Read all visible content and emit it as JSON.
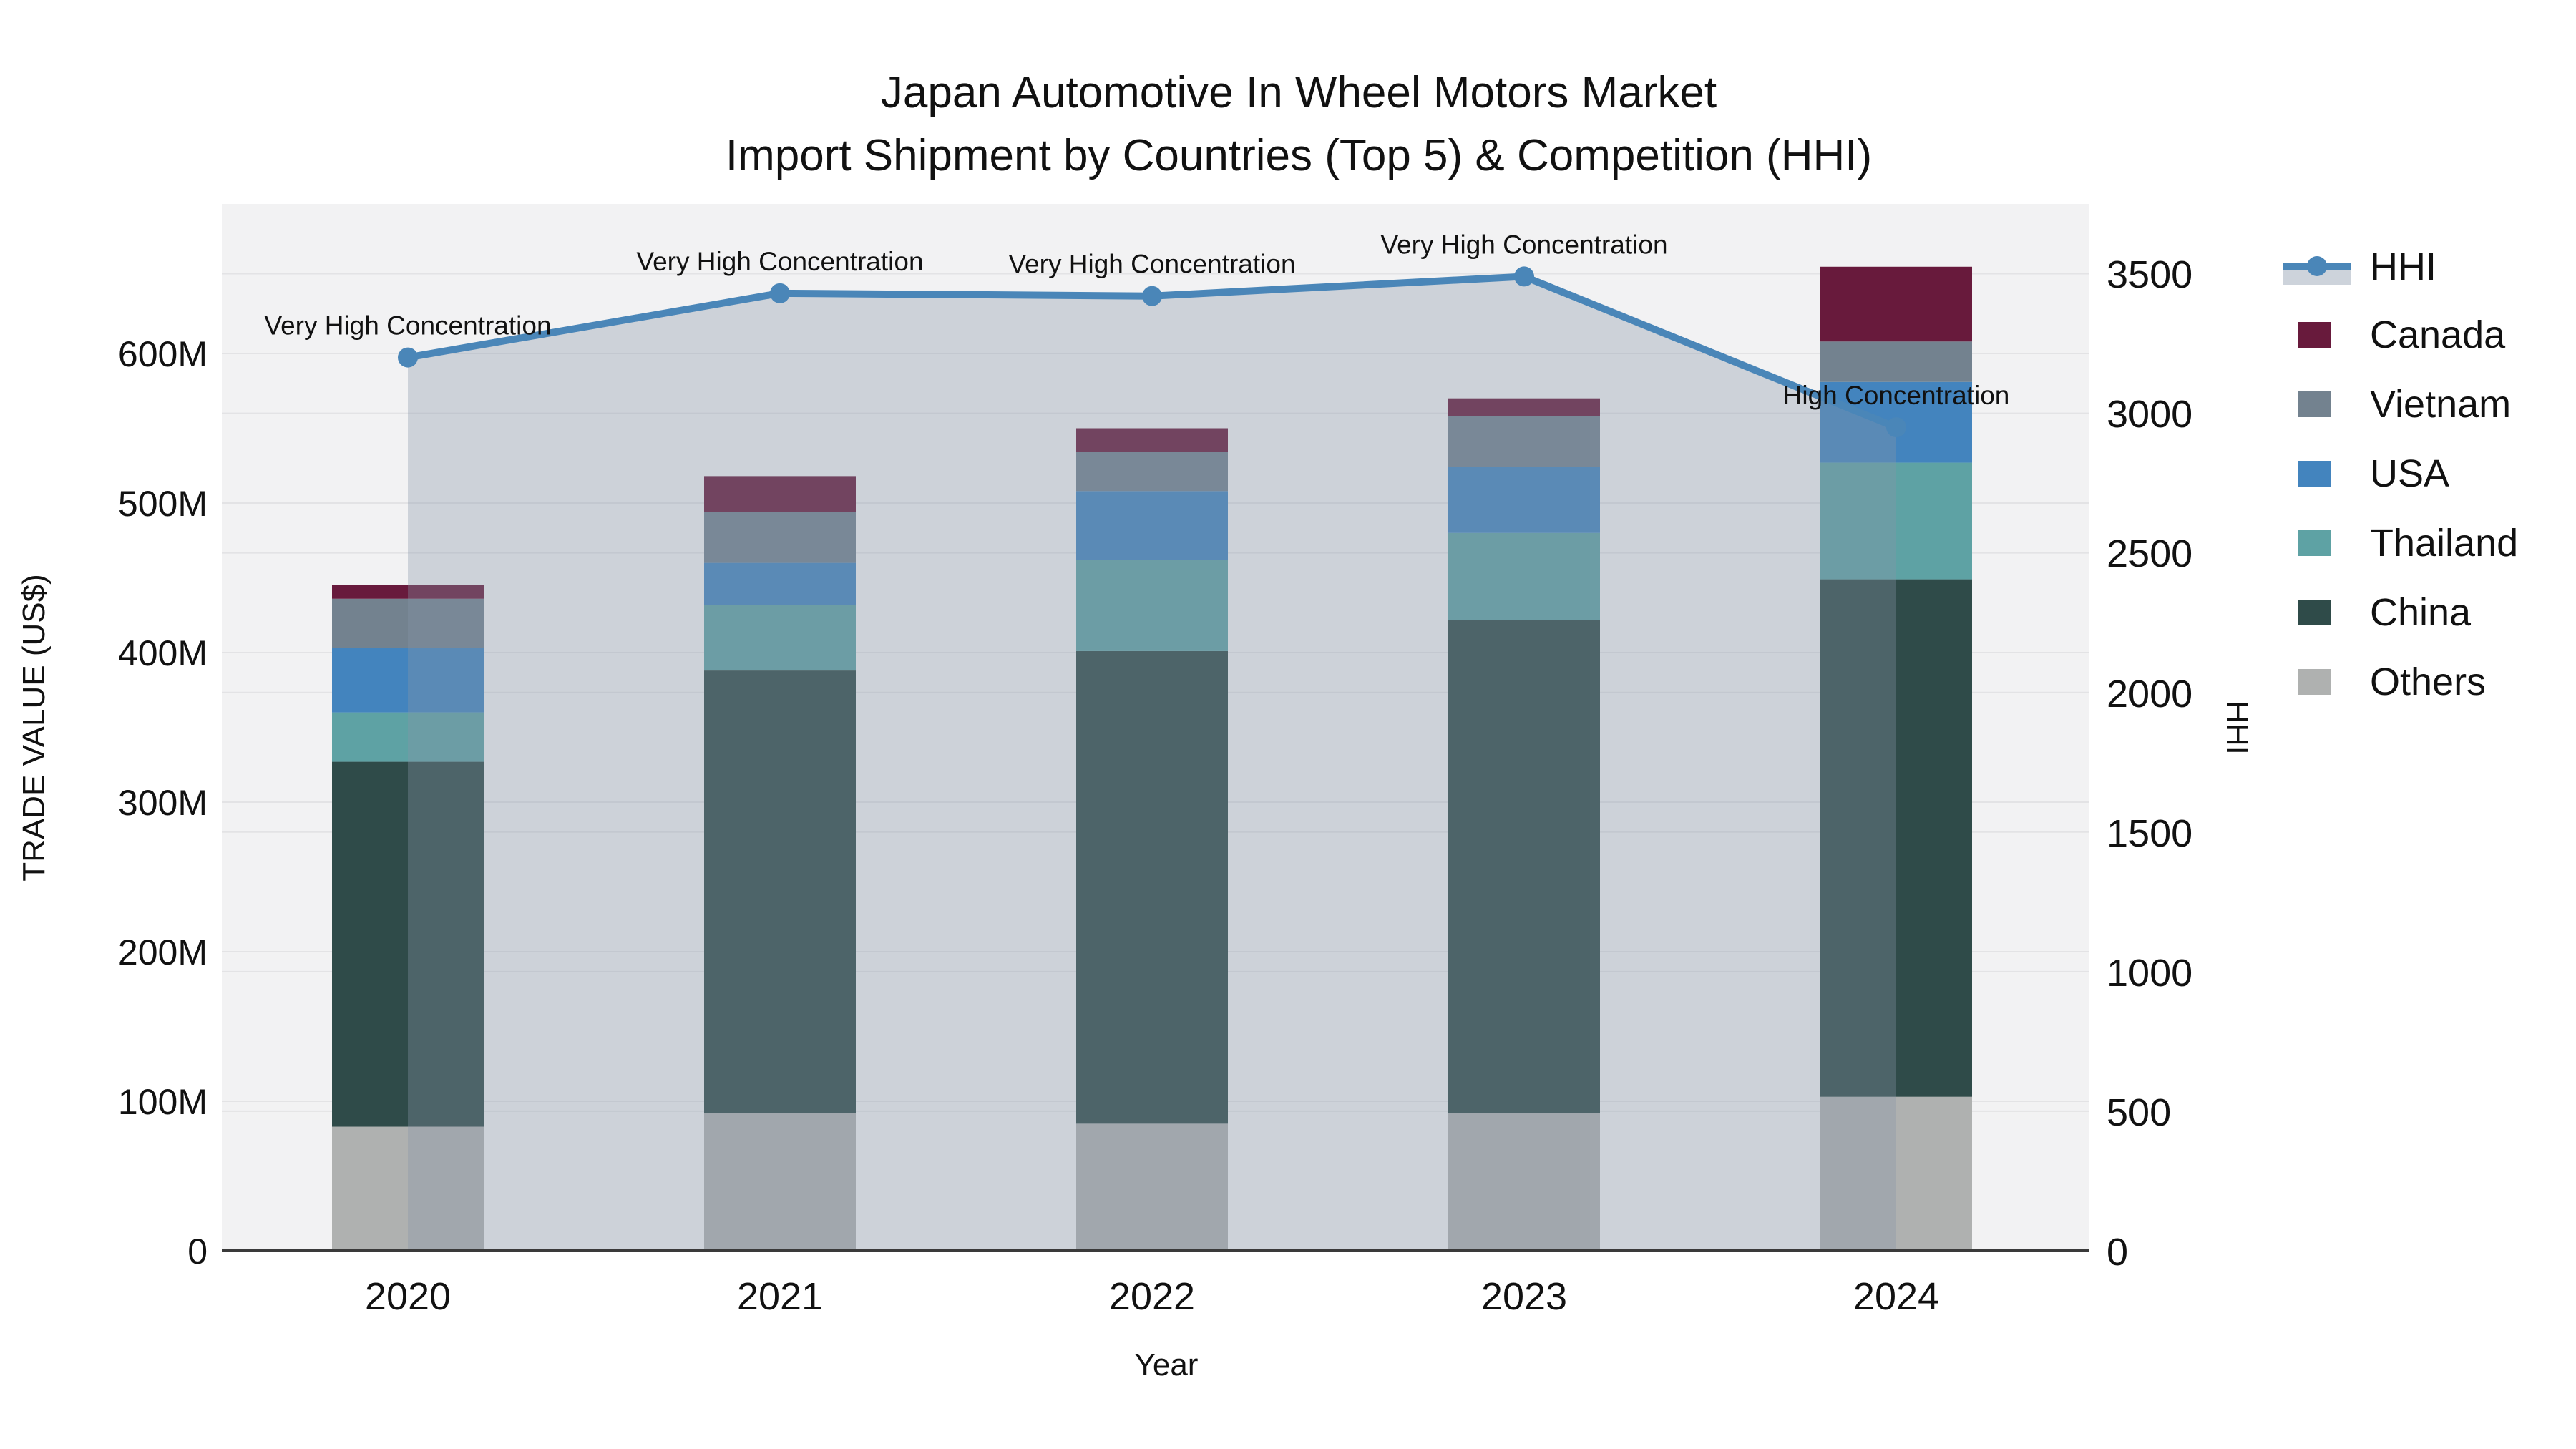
{
  "title": {
    "line1": "Japan Automotive In Wheel Motors Market",
    "line2": "Import Shipment by Countries (Top 5) & Competition (HHI)"
  },
  "axes": {
    "y_left": {
      "title": "TRADE VALUE (US$)",
      "ticks": [
        "0",
        "100M",
        "200M",
        "300M",
        "400M",
        "500M",
        "600M"
      ],
      "max_label_value_musd": 600
    },
    "y_right": {
      "title": "HHI",
      "ticks": [
        "0",
        "500",
        "1000",
        "1500",
        "2000",
        "2500",
        "3000",
        "3500"
      ],
      "max_label_value": 3500
    },
    "x": {
      "title": "Year",
      "categories": [
        "2020",
        "2021",
        "2022",
        "2023",
        "2024"
      ]
    }
  },
  "legend": {
    "items": [
      {
        "label": "HHI",
        "type": "line",
        "color": "#4A86B8",
        "area_swatch": "#CDD3DB"
      },
      {
        "label": "Canada",
        "type": "swatch",
        "color": "#681A3C"
      },
      {
        "label": "Vietnam",
        "type": "swatch",
        "color": "#73828F"
      },
      {
        "label": "USA",
        "type": "swatch",
        "color": "#4384BE"
      },
      {
        "label": "Thailand",
        "type": "swatch",
        "color": "#5EA2A4"
      },
      {
        "label": "China",
        "type": "swatch",
        "color": "#2F4B49"
      },
      {
        "label": "Others",
        "type": "swatch",
        "color": "#AFB1B0"
      }
    ]
  },
  "chart_data": {
    "type": "bar",
    "subtype": "stacked-bars-with-line",
    "title": "Japan Automotive In Wheel Motors Market — Import Shipment by Countries (Top 5) & Competition (HHI)",
    "xlabel": "Year",
    "ylabel": "TRADE VALUE (US$)",
    "y2label": "HHI",
    "categories": [
      "2020",
      "2021",
      "2022",
      "2023",
      "2024"
    ],
    "units": "million US$",
    "ylim_musd": [
      0,
      700
    ],
    "y2lim": [
      0,
      3750
    ],
    "grid": true,
    "legend_position": "right",
    "stacked_series": [
      {
        "name": "Others",
        "color": "#AFB1B0",
        "values_musd": [
          83,
          92,
          85,
          92,
          103
        ]
      },
      {
        "name": "China",
        "color": "#2F4B49",
        "values_musd": [
          244,
          296,
          316,
          330,
          346
        ]
      },
      {
        "name": "Thailand",
        "color": "#5EA2A4",
        "values_musd": [
          33,
          44,
          61,
          58,
          78
        ]
      },
      {
        "name": "USA",
        "color": "#4384BE",
        "values_musd": [
          43,
          28,
          46,
          44,
          54
        ]
      },
      {
        "name": "Vietnam",
        "color": "#73828F",
        "values_musd": [
          33,
          34,
          26,
          34,
          27
        ]
      },
      {
        "name": "Canada",
        "color": "#681A3C",
        "values_musd": [
          9,
          24,
          16,
          12,
          50
        ]
      }
    ],
    "bar_totals_musd": [
      445,
      518,
      550,
      570,
      658
    ],
    "line_series": {
      "name": "HHI",
      "color": "#4A86B8",
      "values": [
        3200,
        3430,
        3420,
        3490,
        2950
      ],
      "area_fill": "rgba(134,149,168,0.34)"
    },
    "annotations": [
      {
        "index": 0,
        "label": "Very High Concentration"
      },
      {
        "index": 1,
        "label": "Very High Concentration"
      },
      {
        "index": 2,
        "label": "Very High Concentration"
      },
      {
        "index": 3,
        "label": "Very High Concentration"
      },
      {
        "index": 4,
        "label": "High Concentration"
      }
    ]
  },
  "colors": {
    "plot_background": "#F2F2F3",
    "page_background": "#FFFFFF",
    "gridline": "#E3E3E5",
    "axis_line": "#3A3A3A",
    "text": "#111111"
  }
}
